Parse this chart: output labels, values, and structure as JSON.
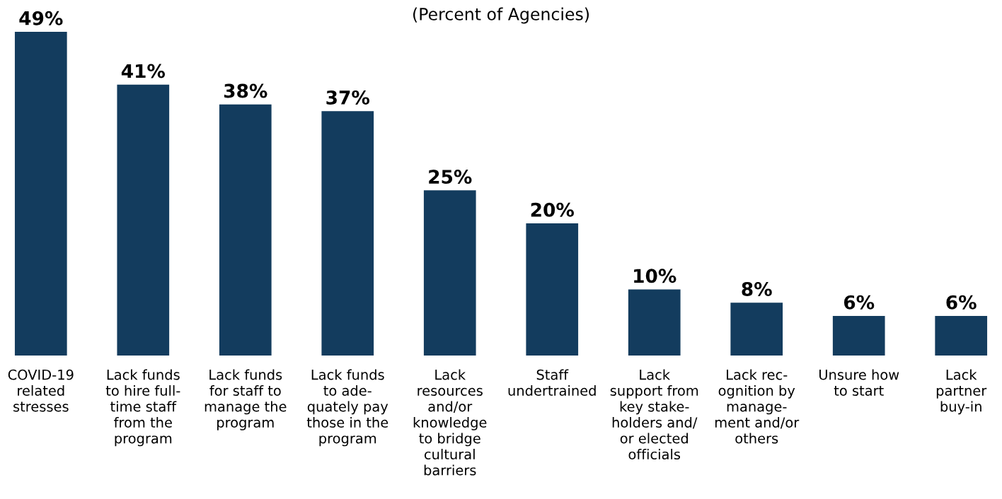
{
  "chart_data": {
    "type": "bar",
    "title": "(Percent of Agencies)",
    "categories": [
      "COVID-19\nrelated\nstresses",
      "Lack funds\nto hire full-\ntime staff\nfrom the\nprogram",
      "Lack funds\nfor staff to\nmanage the\nprogram",
      "Lack funds\nto ade-\nquately pay\nthose in the\nprogram",
      "Lack\nresources\nand/or\nknowledge\nto bridge\ncultural\nbarriers",
      "Staff\nundertrained",
      "Lack\nsupport from\nkey stake-\nholders and/\nor elected\nofficials",
      "Lack rec-\nognition by\nmanage-\nment and/or\nothers",
      "Unsure how\nto start",
      "Lack\npartner\nbuy-in"
    ],
    "values": [
      49,
      41,
      38,
      37,
      25,
      20,
      10,
      8,
      6,
      6
    ],
    "value_labels": [
      "49%",
      "41%",
      "38%",
      "37%",
      "25%",
      "20%",
      "10%",
      "8%",
      "6%",
      "6%"
    ],
    "color": "#133c5e",
    "tick_labels": "x",
    "grid": false
  }
}
